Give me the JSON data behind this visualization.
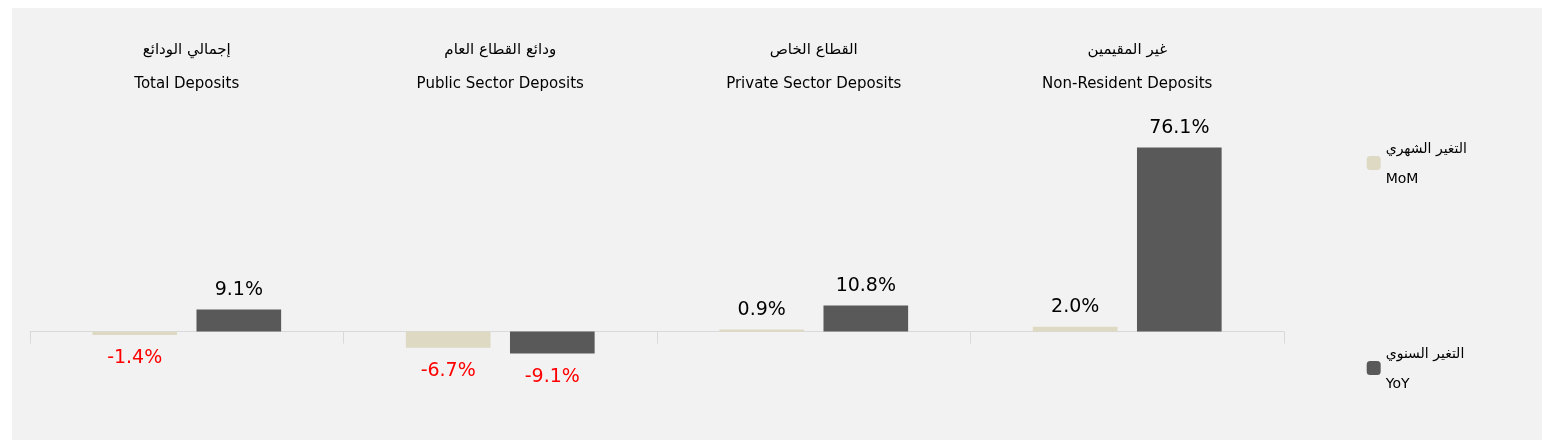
{
  "chart_data": {
    "type": "bar",
    "categories": [
      "إجمالي الودائع\nTotal Deposits",
      "ودائع القطاع العام\nPublic Sector Deposits",
      "القطاع الخاص\nPrivate Sector Deposits",
      "غير المقيمين\nNon-Resident Deposits"
    ],
    "series": [
      {
        "name": "التغير الشهري\nMoM",
        "color": "#ddd9c3",
        "values": [
          -1.4,
          -6.7,
          0.9,
          2.0
        ],
        "value_labels": [
          "-1.4%",
          "-6.7%",
          "0.9%",
          "2.0%"
        ]
      },
      {
        "name": "التغير السنوي\nYoY",
        "color": "#595959",
        "values": [
          9.1,
          -9.1,
          10.8,
          76.1
        ],
        "value_labels": [
          "9.1%",
          "-9.1%",
          "10.8%",
          "76.1%"
        ]
      }
    ],
    "legend": "right"
  }
}
